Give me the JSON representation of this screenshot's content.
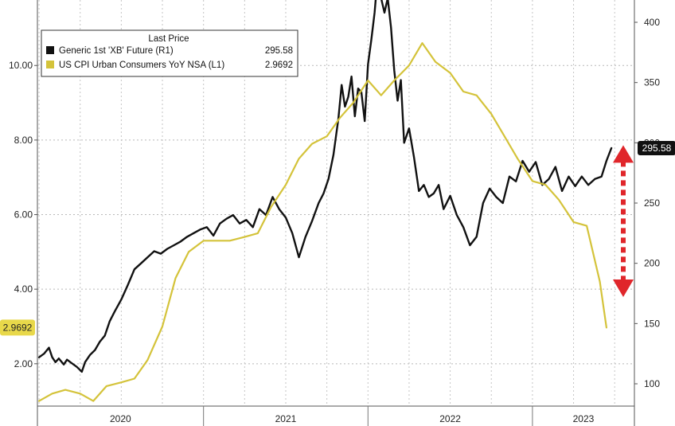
{
  "chart_data": {
    "type": "line",
    "title": "",
    "xlabel": "",
    "ylabel_left": "",
    "ylabel_right": "",
    "grid": true,
    "legend_position": "top-left",
    "legend_header": "Last Price",
    "x_tick_labels": [
      "2020",
      "2021",
      "2022",
      "2023"
    ],
    "left_axis": {
      "ylim": [
        0.8,
        11.5
      ],
      "ticks": [
        2.0,
        4.0,
        6.0,
        8.0,
        10.0
      ],
      "tick_labels": [
        "2.00",
        "4.00",
        "6.00",
        "8.00",
        "10.00"
      ]
    },
    "right_axis": {
      "ylim": [
        95,
        420
      ],
      "ticks": [
        100,
        150,
        200,
        250,
        300,
        350,
        400
      ],
      "tick_labels": [
        "100",
        "150",
        "200",
        "250",
        "300",
        "350",
        "400"
      ]
    },
    "series": [
      {
        "name": "Generic 1st 'XB' Future  (R1)",
        "last_value": "295.58",
        "axis": "right",
        "color": "#111111",
        "x": [
          2020.0,
          2020.03,
          2020.06,
          2020.08,
          2020.1,
          2020.12,
          2020.15,
          2020.17,
          2020.2,
          2020.23,
          2020.26,
          2020.28,
          2020.31,
          2020.34,
          2020.37,
          2020.4,
          2020.43,
          2020.46,
          2020.5,
          2020.54,
          2020.58,
          2020.62,
          2020.66,
          2020.7,
          2020.74,
          2020.78,
          2020.82,
          2020.86,
          2020.9,
          2020.94,
          2020.98,
          2021.02,
          2021.06,
          2021.1,
          2021.14,
          2021.18,
          2021.22,
          2021.26,
          2021.3,
          2021.34,
          2021.38,
          2021.42,
          2021.46,
          2021.5,
          2021.54,
          2021.58,
          2021.62,
          2021.66,
          2021.7,
          2021.73,
          2021.76,
          2021.79,
          2021.82,
          2021.84,
          2021.86,
          2021.88,
          2021.9,
          2021.92,
          2021.94,
          2021.96,
          2021.98,
          2022.0,
          2022.02,
          2022.04,
          2022.06,
          2022.08,
          2022.1,
          2022.12,
          2022.14,
          2022.16,
          2022.18,
          2022.2,
          2022.22,
          2022.25,
          2022.28,
          2022.31,
          2022.34,
          2022.37,
          2022.4,
          2022.43,
          2022.46,
          2022.5,
          2022.54,
          2022.58,
          2022.62,
          2022.66,
          2022.7,
          2022.74,
          2022.78,
          2022.82,
          2022.86,
          2022.9,
          2022.94,
          2022.98,
          2023.02,
          2023.06,
          2023.1,
          2023.14,
          2023.18,
          2023.22,
          2023.26,
          2023.3,
          2023.34,
          2023.38,
          2023.42,
          2023.45,
          2023.48
        ],
        "values": [
          122,
          125,
          130,
          122,
          118,
          121,
          116,
          120,
          117,
          114,
          110,
          118,
          124,
          128,
          135,
          140,
          152,
          160,
          170,
          182,
          195,
          200,
          205,
          210,
          208,
          212,
          215,
          218,
          222,
          225,
          228,
          230,
          223,
          233,
          237,
          240,
          233,
          236,
          230,
          245,
          240,
          255,
          245,
          238,
          225,
          205,
          222,
          235,
          250,
          258,
          270,
          290,
          320,
          348,
          330,
          338,
          355,
          322,
          345,
          342,
          318,
          365,
          385,
          408,
          440,
          420,
          408,
          420,
          396,
          360,
          335,
          352,
          300,
          312,
          288,
          260,
          265,
          255,
          258,
          265,
          245,
          256,
          240,
          230,
          215,
          222,
          250,
          262,
          255,
          250,
          272,
          268,
          285,
          276,
          284,
          265,
          270,
          280,
          260,
          272,
          264,
          272,
          265,
          270,
          272,
          285,
          295.58
        ]
      },
      {
        "name": "US CPI Urban Consumers YoY NSA  (L1)",
        "last_value": "2.9692",
        "axis": "left",
        "color": "#d4c33a",
        "x": [
          2020.0,
          2020.08,
          2020.16,
          2020.25,
          2020.33,
          2020.41,
          2020.5,
          2020.58,
          2020.66,
          2020.75,
          2020.83,
          2020.91,
          2021.0,
          2021.08,
          2021.16,
          2021.25,
          2021.33,
          2021.41,
          2021.5,
          2021.58,
          2021.66,
          2021.75,
          2021.83,
          2021.91,
          2022.0,
          2022.08,
          2022.16,
          2022.25,
          2022.33,
          2022.41,
          2022.5,
          2022.58,
          2022.66,
          2022.75,
          2022.83,
          2022.91,
          2023.0,
          2023.08,
          2023.16,
          2023.25,
          2023.33,
          2023.41,
          2023.45
        ],
        "values": [
          1.0,
          1.2,
          1.3,
          1.2,
          1.0,
          1.4,
          1.5,
          1.6,
          2.1,
          3.0,
          4.3,
          5.0,
          5.3,
          5.3,
          5.3,
          5.4,
          5.5,
          6.2,
          6.8,
          7.5,
          7.9,
          8.1,
          8.6,
          9.0,
          9.6,
          9.2,
          9.6,
          10.0,
          10.6,
          10.1,
          9.8,
          9.3,
          9.2,
          8.7,
          8.1,
          7.5,
          6.9,
          6.8,
          6.4,
          5.8,
          5.7,
          4.2,
          2.9692
        ]
      }
    ],
    "annotations": [
      {
        "type": "double-headed-dashed-arrow",
        "color": "#e0262b",
        "axis": "right",
        "from": 298,
        "to": 172
      }
    ]
  }
}
